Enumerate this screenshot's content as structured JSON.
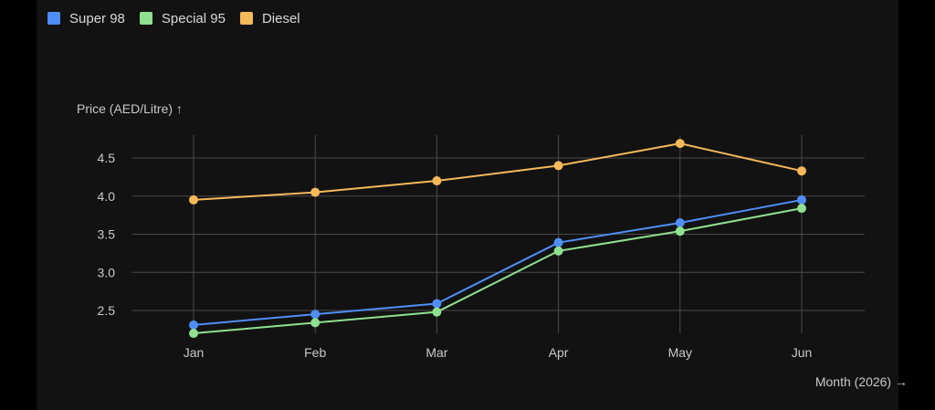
{
  "chart_data": {
    "type": "line",
    "categories": [
      "Jan",
      "Feb",
      "Mar",
      "Apr",
      "May",
      "Jun"
    ],
    "series": [
      {
        "name": "Super 98",
        "color": "#4f8ef7",
        "values": [
          2.31,
          2.45,
          2.59,
          3.39,
          3.65,
          3.95
        ]
      },
      {
        "name": "Special 95",
        "color": "#8fe08f",
        "values": [
          2.2,
          2.34,
          2.48,
          3.28,
          3.54,
          3.84
        ]
      },
      {
        "name": "Diesel",
        "color": "#f5b95a",
        "values": [
          3.95,
          4.05,
          4.2,
          4.4,
          4.69,
          4.33
        ]
      }
    ],
    "ylabel": "Price (AED/Litre) ↑",
    "xlabel": "Month (2026) →",
    "ylim": [
      2.1,
      4.8
    ],
    "yticks": [
      "2.5",
      "3.0",
      "3.5",
      "4.0",
      "4.5"
    ],
    "grid": true,
    "legend_position": "top-left"
  }
}
